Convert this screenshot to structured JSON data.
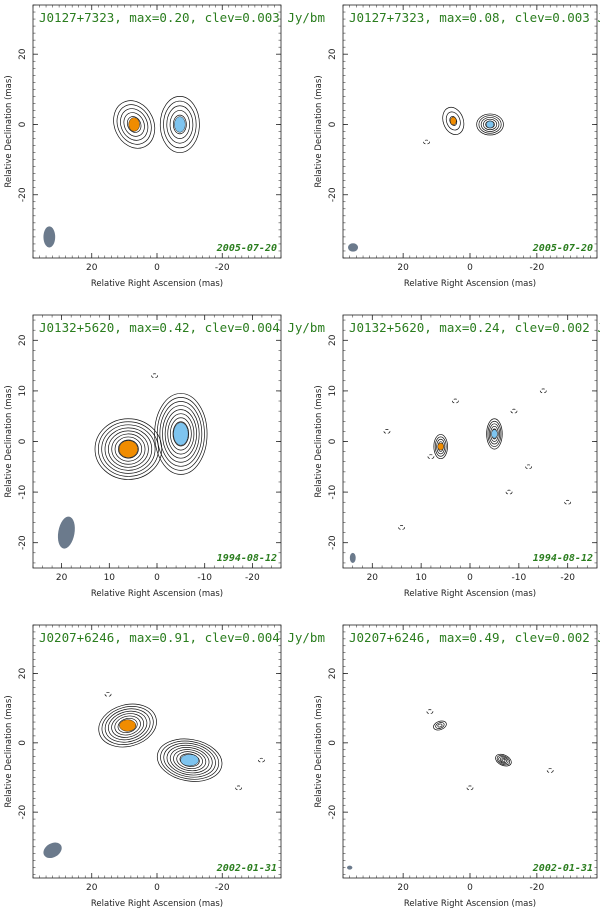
{
  "axis_labels": {
    "x": "Relative Right Ascension (mas)",
    "y": "Relative Declination (mas)"
  },
  "colors": {
    "title": "#2a7d1e",
    "orange_component": "#f08c00",
    "blue_component": "#7ec4ef",
    "beam": "#6b7a8c"
  },
  "panels": [
    {
      "title": "J0127+7323, max=0.20, clev=0.003 Jy/bm",
      "date": "2005-07-20",
      "xlim": [
        38,
        -38
      ],
      "ylim": [
        -38,
        34
      ],
      "xticks": [
        20,
        0,
        -20
      ],
      "yticks": [
        20,
        0,
        -20
      ],
      "components": [
        {
          "color": "orange",
          "x": 7,
          "y": 0,
          "levels": 6,
          "rx": 6,
          "ry": 7,
          "tilt": -25
        },
        {
          "color": "blue",
          "x": -7,
          "y": 0,
          "levels": 6,
          "rx": 6,
          "ry": 8,
          "tilt": 0
        }
      ],
      "beam": {
        "x": 33,
        "y": -32,
        "rx": 1.8,
        "ry": 3,
        "tilt": 0
      },
      "negatives": []
    },
    {
      "title": "J0127+7323, max=0.08, clev=0.003 Jy/bm",
      "date": "2005-07-20",
      "xlim": [
        38,
        -38
      ],
      "ylim": [
        -38,
        34
      ],
      "xticks": [
        20,
        0,
        -20
      ],
      "yticks": [
        20,
        0,
        -20
      ],
      "components": [
        {
          "color": "orange",
          "x": 5,
          "y": 1,
          "levels": 3,
          "rx": 3,
          "ry": 4,
          "tilt": -20
        },
        {
          "color": "blue",
          "x": -6,
          "y": 0,
          "levels": 6,
          "rx": 4,
          "ry": 3,
          "tilt": 0
        }
      ],
      "beam": {
        "x": 35,
        "y": -35,
        "rx": 1.5,
        "ry": 1.2,
        "tilt": 0
      },
      "negatives": [
        [
          13,
          -5
        ]
      ]
    },
    {
      "title": "J0132+5620, max=0.42, clev=0.004 Jy/bm",
      "date": "1994-08-12",
      "xlim": [
        26,
        -26
      ],
      "ylim": [
        -25,
        25
      ],
      "xticks": [
        20,
        10,
        0,
        -10,
        -20
      ],
      "yticks": [
        20,
        10,
        0,
        -10,
        -20
      ],
      "components": [
        {
          "color": "orange",
          "x": 6,
          "y": -1.5,
          "levels": 10,
          "rx": 7,
          "ry": 6,
          "tilt": 0
        },
        {
          "color": "blue",
          "x": -5,
          "y": 1.5,
          "levels": 10,
          "rx": 5.5,
          "ry": 8,
          "tilt": 0
        }
      ],
      "beam": {
        "x": 19,
        "y": -18,
        "rx": 1.7,
        "ry": 3.2,
        "tilt": 10
      },
      "negatives": [
        [
          0.5,
          13
        ]
      ]
    },
    {
      "title": "J0132+5620, max=0.24, clev=0.002 Jy/bm",
      "date": "1994-08-12",
      "xlim": [
        26,
        -26
      ],
      "ylim": [
        -25,
        25
      ],
      "xticks": [
        20,
        10,
        0,
        -10,
        -20
      ],
      "yticks": [
        20,
        10,
        0,
        -10,
        -20
      ],
      "components": [
        {
          "color": "orange",
          "x": 6,
          "y": -1,
          "levels": 5,
          "rx": 1.4,
          "ry": 2.4,
          "tilt": 0
        },
        {
          "color": "blue",
          "x": -5,
          "y": 1.5,
          "levels": 6,
          "rx": 1.6,
          "ry": 3,
          "tilt": 0
        }
      ],
      "beam": {
        "x": 24,
        "y": -23,
        "rx": 0.6,
        "ry": 1,
        "tilt": 0
      },
      "negatives": [
        [
          17,
          2
        ],
        [
          8,
          -3
        ],
        [
          -8,
          -10
        ],
        [
          3,
          8
        ],
        [
          -12,
          -5
        ],
        [
          -20,
          -12
        ],
        [
          -15,
          10
        ],
        [
          14,
          -17
        ],
        [
          -9,
          6
        ]
      ]
    },
    {
      "title": "J0207+6246, max=0.91, clev=0.004 Jy/bm",
      "date": "2002-01-31",
      "xlim": [
        38,
        -38
      ],
      "ylim": [
        -39,
        34
      ],
      "xticks": [
        20,
        0,
        -20
      ],
      "yticks": [
        20,
        0,
        -20
      ],
      "components": [
        {
          "color": "orange",
          "x": 9,
          "y": 5,
          "levels": 9,
          "rx": 9,
          "ry": 6,
          "tilt": -15
        },
        {
          "color": "blue",
          "x": -10,
          "y": -5,
          "levels": 10,
          "rx": 10,
          "ry": 6,
          "tilt": 10
        }
      ],
      "beam": {
        "x": 32,
        "y": -31,
        "rx": 3,
        "ry": 2,
        "tilt": -30
      },
      "negatives": [
        [
          -25,
          -13
        ],
        [
          15,
          14
        ],
        [
          -32,
          -5
        ]
      ]
    },
    {
      "title": "J0207+6246, max=0.49, clev=0.002 Jy/bm",
      "date": "2002-01-31",
      "xlim": [
        38,
        -38
      ],
      "ylim": [
        -39,
        34
      ],
      "xticks": [
        20,
        0,
        -20
      ],
      "yticks": [
        20,
        0,
        -20
      ],
      "components": [
        {
          "color": "none",
          "x": 9,
          "y": 5,
          "levels": 3,
          "rx": 2,
          "ry": 1.2,
          "tilt": -20
        },
        {
          "color": "none",
          "x": -10,
          "y": -5,
          "levels": 5,
          "rx": 2.5,
          "ry": 1.5,
          "tilt": 25
        }
      ],
      "beam": {
        "x": 36,
        "y": -36,
        "rx": 0.8,
        "ry": 0.5,
        "tilt": 0
      },
      "negatives": [
        [
          0,
          -13
        ],
        [
          12,
          9
        ],
        [
          -24,
          -8
        ]
      ]
    }
  ]
}
